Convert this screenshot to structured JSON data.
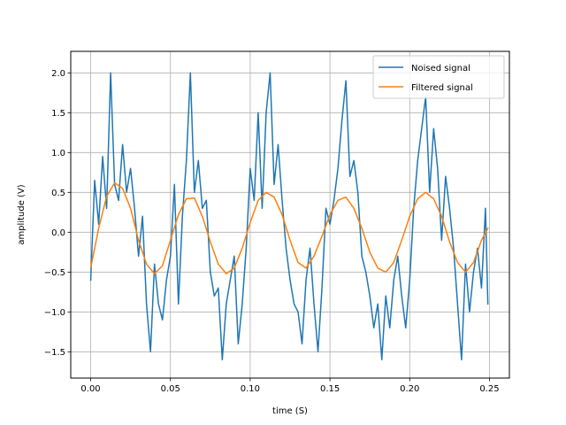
{
  "chart_data": {
    "type": "line",
    "title": "",
    "xlabel": "time (S)",
    "ylabel": "amplitude (V)",
    "xlim": [
      -0.0125,
      0.2625
    ],
    "ylim": [
      -1.83,
      2.27
    ],
    "xticks": [
      0.0,
      0.05,
      0.1,
      0.15,
      0.2,
      0.25
    ],
    "xtick_labels": [
      "0.00",
      "0.05",
      "0.10",
      "0.15",
      "0.20",
      "0.25"
    ],
    "yticks": [
      -1.5,
      -1.0,
      -0.5,
      0.0,
      0.5,
      1.0,
      1.5,
      2.0
    ],
    "ytick_labels": [
      "−1.5",
      "−1.0",
      "−0.5",
      "0.0",
      "0.5",
      "1.0",
      "1.5",
      "2.0"
    ],
    "grid": true,
    "legend_position": "top-right",
    "series": [
      {
        "name": "Noised signal",
        "color": "#1f77b4",
        "x": [
          0.0,
          0.0025,
          0.005,
          0.0075,
          0.01,
          0.0125,
          0.015,
          0.0175,
          0.02,
          0.0225,
          0.025,
          0.0275,
          0.03,
          0.0325,
          0.035,
          0.0375,
          0.04,
          0.0425,
          0.045,
          0.0475,
          0.05,
          0.0525,
          0.055,
          0.0575,
          0.06,
          0.0625,
          0.065,
          0.0675,
          0.07,
          0.0725,
          0.075,
          0.0775,
          0.08,
          0.0825,
          0.085,
          0.0875,
          0.09,
          0.0925,
          0.095,
          0.0975,
          0.1,
          0.1025,
          0.105,
          0.1075,
          0.11,
          0.1125,
          0.115,
          0.1175,
          0.12,
          0.1225,
          0.125,
          0.1275,
          0.13,
          0.1325,
          0.135,
          0.1375,
          0.14,
          0.1425,
          0.145,
          0.1475,
          0.15,
          0.1525,
          0.155,
          0.1575,
          0.16,
          0.1625,
          0.165,
          0.1675,
          0.17,
          0.1725,
          0.175,
          0.1775,
          0.18,
          0.1825,
          0.185,
          0.1875,
          0.19,
          0.1925,
          0.195,
          0.1975,
          0.2,
          0.2025,
          0.205,
          0.2075,
          0.21,
          0.2125,
          0.215,
          0.2175,
          0.22,
          0.2225,
          0.225,
          0.2275,
          0.23,
          0.2325,
          0.235,
          0.2375,
          0.24,
          0.2425,
          0.245,
          0.2475,
          0.249
        ],
        "values": [
          -0.6,
          0.65,
          0.1,
          0.95,
          0.3,
          2.0,
          0.6,
          0.4,
          1.1,
          0.5,
          0.8,
          0.3,
          -0.3,
          0.2,
          -0.9,
          -1.5,
          -0.4,
          -0.9,
          -1.1,
          -0.6,
          -0.3,
          0.6,
          -0.9,
          0.2,
          0.9,
          2.0,
          0.5,
          0.9,
          0.3,
          0.4,
          -0.5,
          -0.8,
          -0.7,
          -1.6,
          -0.9,
          -0.6,
          -0.3,
          -1.4,
          -0.9,
          -0.2,
          0.8,
          0.4,
          1.5,
          0.3,
          1.5,
          2.0,
          0.6,
          1.1,
          0.4,
          -0.2,
          -0.6,
          -0.9,
          -1.0,
          -1.4,
          -0.6,
          -0.2,
          -0.9,
          -1.5,
          -0.7,
          0.3,
          0.1,
          0.4,
          0.8,
          1.4,
          1.9,
          0.7,
          0.9,
          0.5,
          -0.3,
          -0.5,
          -0.8,
          -1.2,
          -0.9,
          -1.6,
          -0.8,
          -1.2,
          -0.6,
          -0.3,
          -0.8,
          -1.2,
          -0.6,
          0.3,
          0.9,
          1.3,
          1.7,
          0.5,
          1.3,
          0.8,
          -0.1,
          0.7,
          0.3,
          -0.2,
          -0.9,
          -1.6,
          -0.4,
          -1.0,
          -0.5,
          -0.2,
          -0.7,
          0.3,
          -0.9
        ]
      },
      {
        "name": "Filtered signal",
        "color": "#ff7f0e",
        "x": [
          0.0,
          0.005,
          0.01,
          0.015,
          0.02,
          0.025,
          0.03,
          0.035,
          0.04,
          0.045,
          0.05,
          0.055,
          0.06,
          0.065,
          0.07,
          0.075,
          0.08,
          0.085,
          0.09,
          0.095,
          0.1,
          0.105,
          0.11,
          0.115,
          0.12,
          0.125,
          0.13,
          0.135,
          0.14,
          0.145,
          0.15,
          0.155,
          0.16,
          0.165,
          0.17,
          0.175,
          0.18,
          0.185,
          0.19,
          0.195,
          0.2,
          0.205,
          0.21,
          0.215,
          0.22,
          0.225,
          0.23,
          0.235,
          0.24,
          0.245,
          0.249
        ],
        "values": [
          -0.45,
          0.05,
          0.45,
          0.62,
          0.55,
          0.3,
          -0.1,
          -0.4,
          -0.52,
          -0.42,
          -0.1,
          0.22,
          0.42,
          0.43,
          0.2,
          -0.12,
          -0.4,
          -0.52,
          -0.45,
          -0.2,
          0.12,
          0.4,
          0.5,
          0.44,
          0.22,
          -0.1,
          -0.38,
          -0.45,
          -0.3,
          -0.05,
          0.22,
          0.4,
          0.44,
          0.3,
          0.05,
          -0.25,
          -0.45,
          -0.5,
          -0.38,
          -0.1,
          0.2,
          0.42,
          0.5,
          0.42,
          0.2,
          -0.12,
          -0.38,
          -0.5,
          -0.38,
          -0.1,
          0.05
        ]
      }
    ]
  }
}
